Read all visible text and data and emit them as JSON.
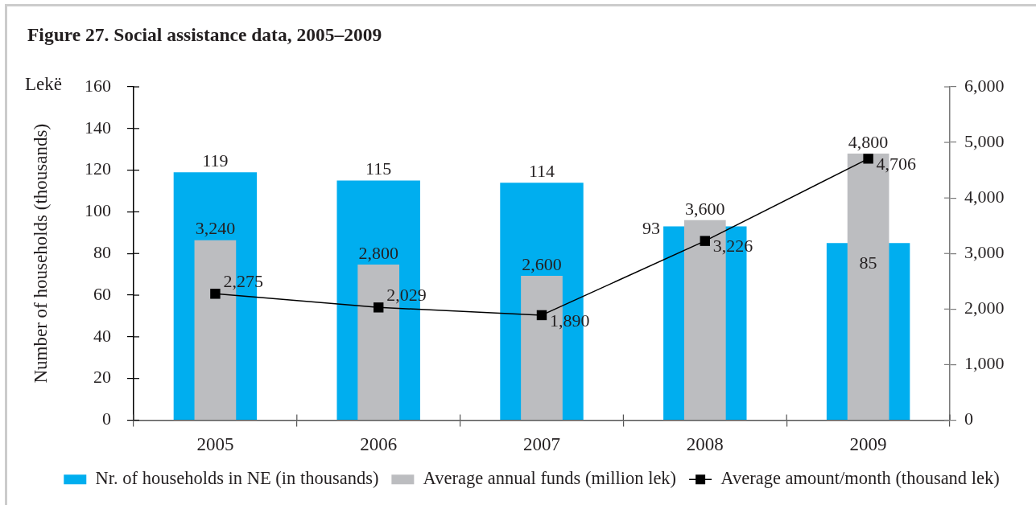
{
  "chart_data": {
    "type": "bar",
    "title": "Figure 27. Social assistance data, 2005–2009",
    "ylabel": "Number of households (thousands)",
    "annotations": [
      "Lekë"
    ],
    "categories": [
      "2005",
      "2006",
      "2007",
      "2008",
      "2009"
    ],
    "series": [
      {
        "name": "Nr. of households in NE (in thousands)",
        "color": "#00aeef",
        "values": [
          119,
          115,
          114,
          93,
          85
        ],
        "value_labels": [
          "119",
          "115",
          "114",
          "93",
          "85"
        ]
      },
      {
        "name": "Average annual funds (million lek)",
        "color": "#bcbdc0",
        "axis": "y2",
        "values": [
          3240,
          2800,
          2600,
          3600,
          4800
        ],
        "value_labels": [
          "3,240",
          "2,800",
          "2,600",
          "3,600",
          "4,800"
        ]
      },
      {
        "name": "Average amount/month (thousand lek)",
        "type": "line",
        "color": "#000000",
        "axis": "y2",
        "values": [
          2275,
          2029,
          1890,
          3226,
          4706
        ],
        "value_labels": [
          "2,275",
          "2,029",
          "1,890",
          "3,226",
          "4,706"
        ]
      }
    ],
    "ylim": [
      0,
      160
    ],
    "yticks": [
      0,
      20,
      40,
      60,
      80,
      100,
      120,
      140,
      160
    ],
    "y2lim": [
      0,
      6000
    ],
    "y2ticks": [
      0,
      {
        "value": 1000,
        "label": "1,000"
      },
      {
        "value": 2000,
        "label": "2,000"
      },
      {
        "value": 3000,
        "label": "3,000"
      },
      {
        "value": 4000,
        "label": "4,000"
      },
      {
        "value": 5000,
        "label": "5,000"
      },
      {
        "value": 6000,
        "label": "6,000"
      }
    ],
    "legend": "bottom",
    "marker": "square"
  }
}
